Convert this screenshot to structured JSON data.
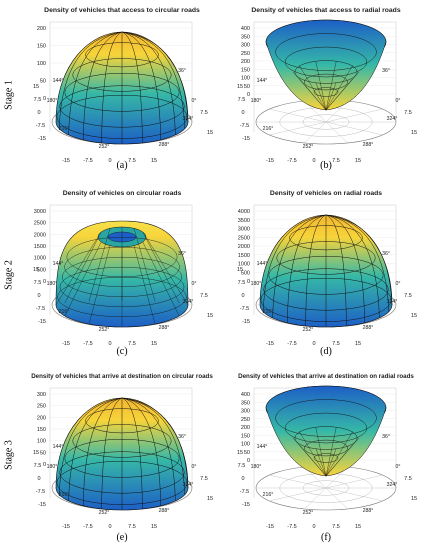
{
  "stages": [
    "Stage 1",
    "Stage 2",
    "Stage 3"
  ],
  "captions": [
    "(a)",
    "(b)",
    "(c)",
    "(d)",
    "(e)",
    "(f)"
  ],
  "colors": {
    "low": "#1d5fc6",
    "mid": "#36b8a7",
    "high": "#f7d43a",
    "line": "#111111"
  },
  "chart_data": [
    {
      "type": "area",
      "title": "Density of vehicles that access to circular roads",
      "shape": "dome",
      "z_ticks": [
        "200",
        "150",
        "100",
        "50",
        "0"
      ],
      "angle_ticks": [
        "144°",
        "180°",
        "216°",
        "252°",
        "288°",
        "324°",
        "0°",
        "36°"
      ],
      "axis_ticks": [
        "-15",
        "-7.5",
        "0",
        "7.5",
        "15"
      ],
      "left_ticks": [
        "15",
        "7.5",
        "0",
        "-7.5",
        "-15"
      ],
      "right_ticks": [
        "7.5",
        "15"
      ],
      "bottom_ticks": [
        "-15",
        "-7.5",
        "0",
        "7.5",
        "15"
      ]
    },
    {
      "type": "area",
      "title": "Density of vehicles that access to radial roads",
      "shape": "bowl",
      "z_ticks": [
        "400",
        "350",
        "300",
        "250",
        "200",
        "150",
        "100",
        "50",
        "0"
      ],
      "angle_ticks": [
        "144°",
        "180°",
        "216°",
        "252°",
        "288°",
        "324°",
        "0°",
        "36°"
      ],
      "left_ticks": [
        "15",
        "7.5",
        "0",
        "-7.5",
        "-15"
      ],
      "right_ticks": [
        "7.5",
        "15"
      ],
      "bottom_ticks": [
        "-15",
        "-7.5",
        "0",
        "7.5",
        "15"
      ]
    },
    {
      "type": "area",
      "title": "Density of vehicles on circular roads",
      "shape": "torus",
      "z_ticks": [
        "3000",
        "2500",
        "2000",
        "1500",
        "1000",
        "500",
        "0"
      ],
      "angle_ticks": [
        "144°",
        "180°",
        "216°",
        "252°",
        "288°",
        "324°",
        "0°",
        "36°"
      ],
      "left_ticks": [
        "15",
        "7.5",
        "0",
        "-7.5",
        "-15"
      ],
      "right_ticks": [
        "7.5",
        "15"
      ],
      "bottom_ticks": [
        "-15",
        "-7.5",
        "0",
        "7.5",
        "15"
      ]
    },
    {
      "type": "area",
      "title": "Density of vehicles on radial roads",
      "shape": "dome",
      "z_ticks": [
        "4000",
        "3500",
        "3000",
        "2500",
        "2000",
        "1500",
        "1000",
        "500",
        "0"
      ],
      "angle_ticks": [
        "144°",
        "180°",
        "216°",
        "252°",
        "288°",
        "324°",
        "0°",
        "36°"
      ],
      "left_ticks": [
        "15",
        "7.5",
        "0",
        "-7.5",
        "-15"
      ],
      "right_ticks": [
        "7.5",
        "15"
      ],
      "bottom_ticks": [
        "-15",
        "-7.5",
        "0",
        "7.5",
        "15"
      ]
    },
    {
      "type": "area",
      "title": "Density of vehicles that arrive at destination on circular roads",
      "shape": "dome",
      "z_ticks": [
        "300",
        "250",
        "200",
        "150",
        "100",
        "50",
        "0"
      ],
      "angle_ticks": [
        "144°",
        "180°",
        "216°",
        "252°",
        "288°",
        "324°",
        "0°",
        "36°"
      ],
      "left_ticks": [
        "15",
        "7.5",
        "0",
        "-7.5",
        "-15"
      ],
      "right_ticks": [
        "7.5",
        "15"
      ],
      "bottom_ticks": [
        "-15",
        "-7.5",
        "0",
        "7.5",
        "15"
      ]
    },
    {
      "type": "area",
      "title": "Density of vehicles that arrive at destination on radial roads",
      "shape": "bowl",
      "z_ticks": [
        "400",
        "350",
        "300",
        "250",
        "200",
        "150",
        "100",
        "50",
        "0"
      ],
      "angle_ticks": [
        "144°",
        "180°",
        "216°",
        "252°",
        "288°",
        "324°",
        "0°",
        "36°"
      ],
      "left_ticks": [
        "15",
        "7.5",
        "0",
        "-7.5",
        "-15"
      ],
      "right_ticks": [
        "7.5",
        "15"
      ],
      "bottom_ticks": [
        "-15",
        "-7.5",
        "0",
        "7.5",
        "15"
      ]
    }
  ]
}
